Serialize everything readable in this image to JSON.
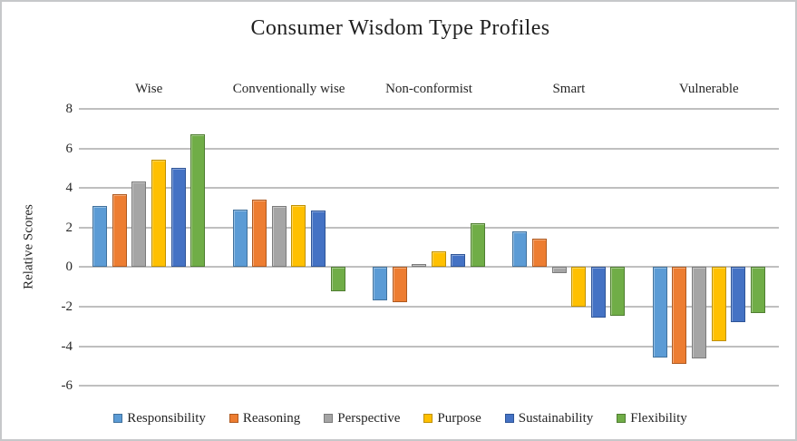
{
  "frame": {
    "border_color": "#c6c8ca",
    "background": "#ffffff"
  },
  "chart_data": {
    "type": "bar",
    "title": "Consumer Wisdom Type Profiles",
    "ylabel": "Relative Scores",
    "xlabel": "",
    "categories": [
      "Wise",
      "Conventionally wise",
      "Non-conformist",
      "Smart",
      "Vulnerable"
    ],
    "series": [
      {
        "name": "Responsibility",
        "color": "#5B9BD5",
        "border_color": "#41719C",
        "values": [
          3.1,
          2.9,
          -1.7,
          1.8,
          -4.55
        ]
      },
      {
        "name": "Reasoning",
        "color": "#ED7D31",
        "border_color": "#AE5A21",
        "values": [
          3.7,
          3.4,
          -1.75,
          1.45,
          -4.9
        ]
      },
      {
        "name": "Perspective",
        "color": "#A5A5A5",
        "border_color": "#7B7B7B",
        "values": [
          4.35,
          3.1,
          0.15,
          -0.3,
          -4.6
        ]
      },
      {
        "name": "Purpose",
        "color": "#FFC000",
        "border_color": "#BF9000",
        "values": [
          5.45,
          3.15,
          0.8,
          -2.0,
          -3.75
        ]
      },
      {
        "name": "Sustainability",
        "color": "#4472C4",
        "border_color": "#2F5597",
        "values": [
          5.0,
          2.85,
          0.65,
          -2.55,
          -2.8
        ]
      },
      {
        "name": "Flexibility",
        "color": "#70AD47",
        "border_color": "#507E32",
        "values": [
          6.7,
          -1.2,
          2.2,
          -2.45,
          -2.3
        ]
      }
    ],
    "y_ticks": [
      8,
      6,
      4,
      2,
      0,
      -2,
      -4,
      -6
    ],
    "ylim": [
      -6,
      8
    ],
    "grid": true,
    "gridline_color": "#bfbfbf",
    "text_color": "#262626",
    "legend_position": "bottom"
  }
}
